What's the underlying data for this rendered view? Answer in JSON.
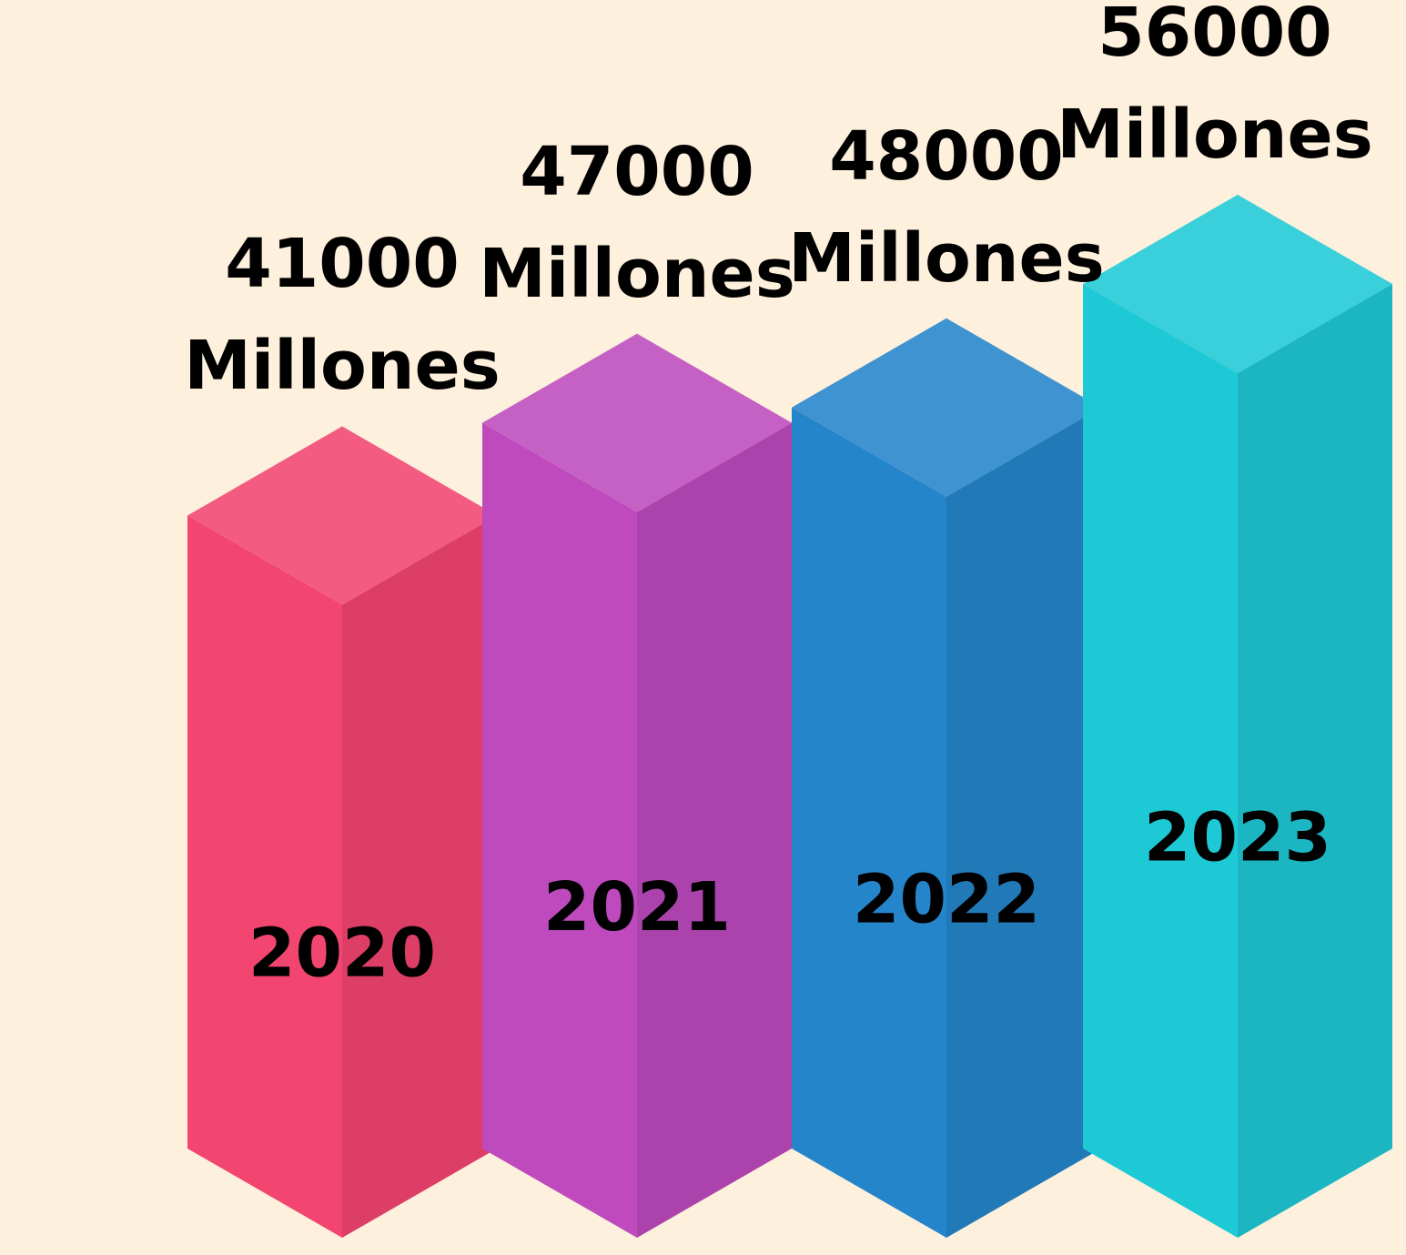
{
  "chart_data": {
    "type": "bar",
    "categories": [
      "2020",
      "2021",
      "2022",
      "2023"
    ],
    "values": [
      41000,
      47000,
      48000,
      56000
    ],
    "value_labels": [
      "41000 Millones",
      "47000 Millones",
      "48000 Millones",
      "56000 Millones"
    ],
    "colors": [
      "#f2456f",
      "#be4abd",
      "#2585cb",
      "#1ec9d6"
    ]
  }
}
